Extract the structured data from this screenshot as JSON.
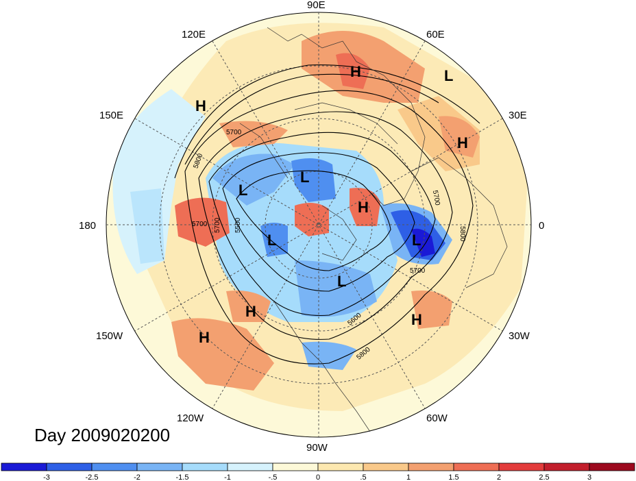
{
  "title": "Day 2009020200",
  "longitude_labels": [
    "90E",
    "60E",
    "30E",
    "0",
    "30W",
    "60W",
    "90W",
    "120W",
    "150W",
    "180",
    "150E",
    "120E"
  ],
  "centers": [
    {
      "type": "H"
    },
    {
      "type": "L"
    },
    {
      "type": "H"
    },
    {
      "type": "H"
    },
    {
      "type": "L"
    },
    {
      "type": "L"
    },
    {
      "type": "H"
    },
    {
      "type": "L"
    },
    {
      "type": "L"
    },
    {
      "type": "L"
    },
    {
      "type": "H"
    },
    {
      "type": "H"
    },
    {
      "type": "H"
    }
  ],
  "contour_labels": [
    "5700",
    "5800",
    "5700",
    "5500",
    "5700",
    "5700",
    "5800",
    "5600",
    "5800",
    "5700"
  ],
  "colorbar": {
    "colors": [
      "#1a1ad6",
      "#2e5fe6",
      "#4f8ff0",
      "#79b4f5",
      "#a6dcfb",
      "#d6f2fc",
      "#fdf9d8",
      "#fce8b0",
      "#f9c98a",
      "#f3a070",
      "#ee6e55",
      "#e33c3c",
      "#c21e2c",
      "#9c0a1e"
    ],
    "labels": [
      "-3",
      "-2.5",
      "-2",
      "-1.5",
      "-1",
      "-.5",
      "0",
      ".5",
      "1",
      "1.5",
      "2",
      "2.5",
      "3"
    ]
  }
}
